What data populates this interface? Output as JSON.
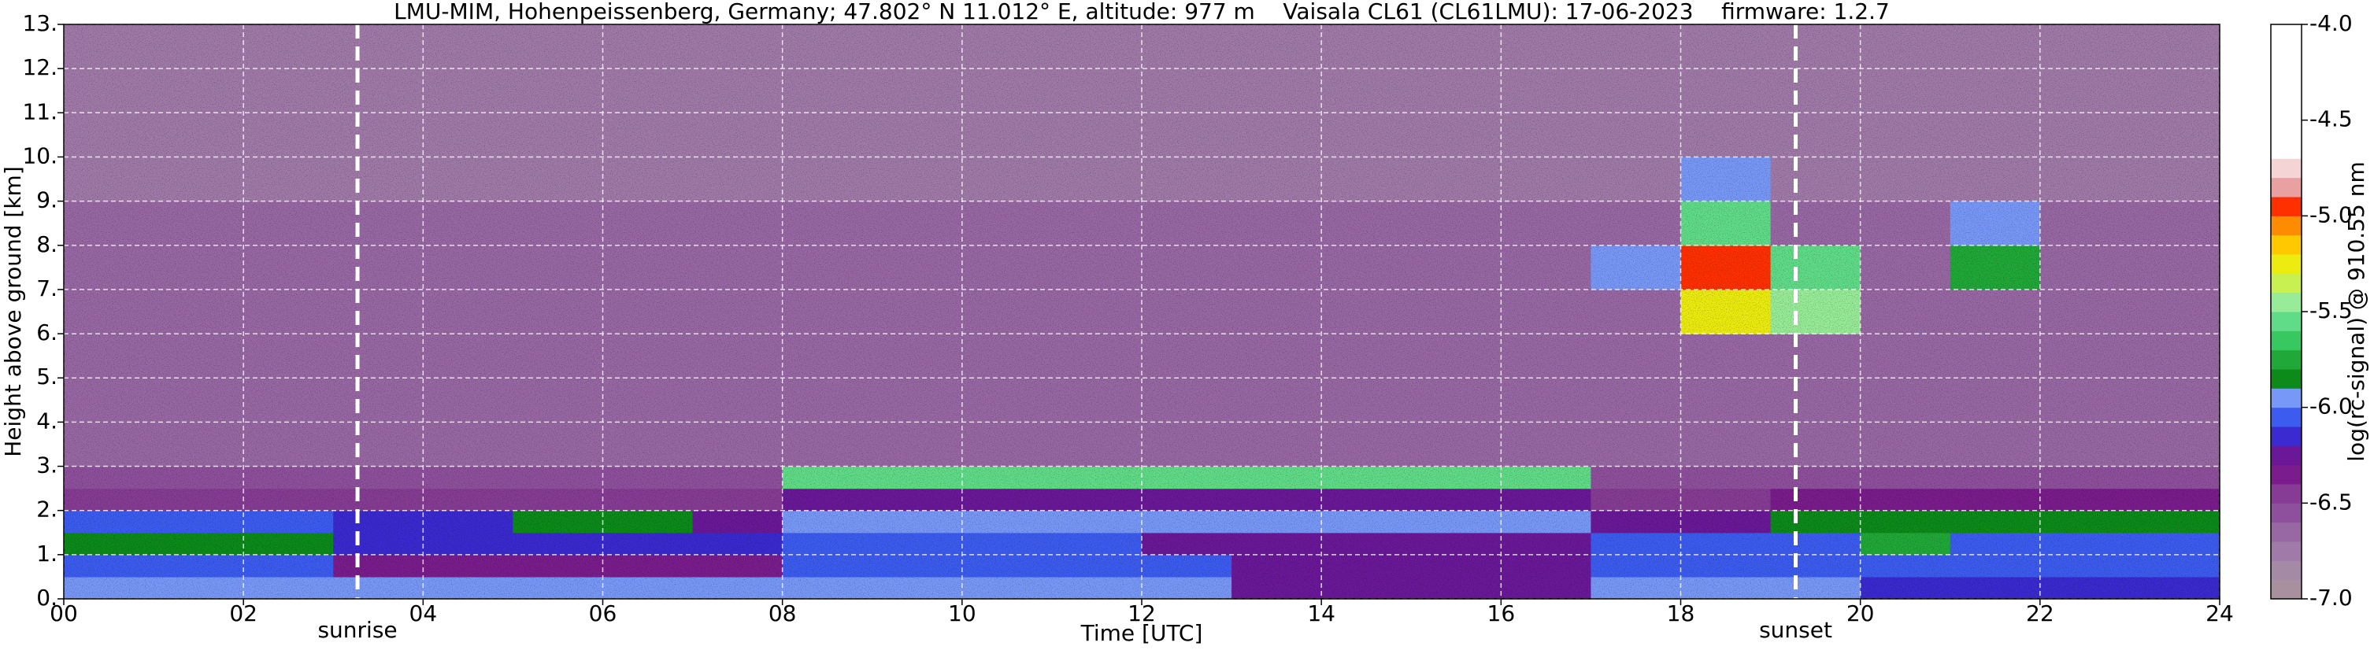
{
  "chart_data": {
    "type": "heatmap",
    "title": "LMU-MIM, Hohenpeissenberg, Germany; 47.802° N 11.012° E, altitude: 977 m    Vaisala CL61 (CL61LMU): 17-06-2023    firmware: 1.2.7",
    "x_label": "Time [UTC]",
    "y_label": "Height above ground [km]",
    "colorbar_label": "log(rc-signal) @ 910.55 nm",
    "xlim": [
      0,
      24
    ],
    "ylim": [
      0,
      13
    ],
    "xticks": [
      {
        "value": 0,
        "label": "00"
      },
      {
        "value": 2,
        "label": "02"
      },
      {
        "value": 4,
        "label": "04"
      },
      {
        "value": 6,
        "label": "06"
      },
      {
        "value": 8,
        "label": "08"
      },
      {
        "value": 10,
        "label": "10"
      },
      {
        "value": 12,
        "label": "12"
      },
      {
        "value": 14,
        "label": "14"
      },
      {
        "value": 16,
        "label": "16"
      },
      {
        "value": 18,
        "label": "18"
      },
      {
        "value": 20,
        "label": "20"
      },
      {
        "value": 22,
        "label": "22"
      },
      {
        "value": 24,
        "label": "24"
      }
    ],
    "yticks": [
      {
        "value": 0,
        "label": "0."
      },
      {
        "value": 1,
        "label": "1."
      },
      {
        "value": 2,
        "label": "2."
      },
      {
        "value": 3,
        "label": "3."
      },
      {
        "value": 4,
        "label": "4."
      },
      {
        "value": 5,
        "label": "5."
      },
      {
        "value": 6,
        "label": "6."
      },
      {
        "value": 7,
        "label": "7."
      },
      {
        "value": 8,
        "label": "8."
      },
      {
        "value": 9,
        "label": "9."
      },
      {
        "value": 10,
        "label": "10."
      },
      {
        "value": 11,
        "label": "11."
      },
      {
        "value": 12,
        "label": "12."
      },
      {
        "value": 13,
        "label": "13."
      }
    ],
    "zlim": [
      -7,
      -4
    ],
    "zticks": [
      {
        "value": -7,
        "label": "-7.0"
      },
      {
        "value": -6.5,
        "label": "-6.5"
      },
      {
        "value": -6,
        "label": "-6.0"
      },
      {
        "value": -5.5,
        "label": "-5.5"
      },
      {
        "value": -5,
        "label": "-5.0"
      },
      {
        "value": -4.5,
        "label": "-4.5"
      },
      {
        "value": -4,
        "label": "-4.0"
      }
    ],
    "colormap": [
      "#a8909f",
      "#a58aa6",
      "#a07aa8",
      "#9868a4",
      "#8e509c",
      "#863c94",
      "#7a1c8c",
      "#6a1898",
      "#3a2ad0",
      "#3c5cf0",
      "#7898f8",
      "#0c8a1a",
      "#20a838",
      "#38c860",
      "#60dc88",
      "#98ec98",
      "#c8f050",
      "#ecec10",
      "#ffc800",
      "#ff8c00",
      "#ff3000",
      "#e8a0a0",
      "#f4d4d4",
      "#ffffff",
      "#ffffff",
      "#ffffff",
      "#ffffff",
      "#ffffff",
      "#ffffff",
      "#ffffff"
    ],
    "grid": true,
    "annotations": [
      {
        "text": "sunrise",
        "x": 3.27
      },
      {
        "text": "sunset",
        "x": 19.28
      }
    ],
    "x_bins": [
      0,
      1,
      2,
      3,
      4,
      5,
      6,
      7,
      8,
      9,
      10,
      11,
      12,
      13,
      14,
      15,
      16,
      17,
      18,
      19,
      20,
      21,
      22,
      23,
      24
    ],
    "y_bins": [
      0,
      0.5,
      1,
      1.5,
      2,
      2.5,
      3,
      4,
      5,
      6,
      7,
      8,
      9,
      10,
      11,
      12,
      13
    ],
    "z": [
      [
        -6.0,
        -6.0,
        -6.0,
        -6.0,
        -6.0,
        -6.0,
        -6.0,
        -6.0,
        -6.0,
        -6.0,
        -6.0,
        -6.0,
        -6.0,
        -6.2,
        -6.2,
        -6.2,
        -6.2,
        -6.0,
        -6.0,
        -6.0,
        -6.15,
        -6.15,
        -6.15,
        -6.15
      ],
      [
        -6.05,
        -6.05,
        -6.05,
        -6.35,
        -6.35,
        -6.35,
        -6.35,
        -6.35,
        -6.05,
        -6.05,
        -6.05,
        -6.05,
        -6.05,
        -6.25,
        -6.25,
        -6.25,
        -6.25,
        -6.05,
        -6.05,
        -6.05,
        -6.05,
        -6.05,
        -6.05,
        -6.05
      ],
      [
        -5.85,
        -5.85,
        -5.85,
        -6.15,
        -6.15,
        -6.15,
        -6.15,
        -6.15,
        -6.05,
        -6.05,
        -6.05,
        -6.05,
        -6.2,
        -6.2,
        -6.2,
        -6.2,
        -6.2,
        -6.1,
        -6.1,
        -6.1,
        -5.8,
        -6.1,
        -6.1,
        -6.1
      ],
      [
        -6.1,
        -6.1,
        -6.1,
        -6.15,
        -6.15,
        -5.85,
        -5.85,
        -6.2,
        -5.9,
        -6.0,
        -5.9,
        -6.0,
        -5.9,
        -6.0,
        -6.0,
        -5.9,
        -6.0,
        -6.3,
        -6.3,
        -5.85,
        -5.85,
        -5.85,
        -5.85,
        -5.85
      ],
      [
        -6.4,
        -6.4,
        -6.4,
        -6.4,
        -6.4,
        -6.4,
        -6.4,
        -6.4,
        -6.2,
        -6.2,
        -6.2,
        -6.2,
        -6.2,
        -6.2,
        -6.2,
        -6.2,
        -6.2,
        -6.45,
        -6.45,
        -6.35,
        -6.35,
        -6.35,
        -6.35,
        -6.35
      ],
      [
        -6.55,
        -6.55,
        -6.55,
        -6.55,
        -6.55,
        -6.55,
        -6.55,
        -6.55,
        -5.6,
        -5.6,
        -5.6,
        -5.6,
        -5.6,
        -5.6,
        -5.6,
        -5.6,
        -5.6,
        -6.55,
        -6.55,
        -6.55,
        -6.55,
        -6.55,
        -6.55,
        -6.55
      ],
      [
        -6.65,
        -6.65,
        -6.65,
        -6.65,
        -6.65,
        -6.65,
        -6.65,
        -6.65,
        -6.65,
        -6.65,
        -6.65,
        -6.65,
        -6.65,
        -6.65,
        -6.65,
        -6.65,
        -6.65,
        -6.65,
        -6.65,
        -6.65,
        -6.65,
        -6.65,
        -6.65,
        -6.65
      ],
      [
        -6.65,
        -6.65,
        -6.65,
        -6.65,
        -6.65,
        -6.65,
        -6.65,
        -6.65,
        -6.65,
        -6.65,
        -6.65,
        -6.65,
        -6.65,
        -6.65,
        -6.65,
        -6.65,
        -6.65,
        -6.65,
        -6.65,
        -6.65,
        -6.65,
        -6.65,
        -6.65,
        -6.65
      ],
      [
        -6.65,
        -6.65,
        -6.65,
        -6.65,
        -6.65,
        -6.65,
        -6.65,
        -6.65,
        -6.65,
        -6.65,
        -6.65,
        -6.65,
        -6.65,
        -6.65,
        -6.65,
        -6.65,
        -6.65,
        -6.65,
        -6.65,
        -6.65,
        -6.65,
        -6.65,
        -6.65,
        -6.65
      ],
      [
        -6.65,
        -6.65,
        -6.65,
        -6.65,
        -6.65,
        -6.65,
        -6.65,
        -6.65,
        -6.65,
        -6.65,
        -6.65,
        -6.65,
        -6.65,
        -6.65,
        -6.65,
        -6.65,
        -6.65,
        -6.65,
        -5.3,
        -5.4,
        -6.65,
        -6.65,
        -6.65,
        -6.65
      ],
      [
        -6.65,
        -6.65,
        -6.65,
        -6.65,
        -6.65,
        -6.65,
        -6.65,
        -6.65,
        -6.65,
        -6.65,
        -6.65,
        -6.65,
        -6.65,
        -6.65,
        -6.65,
        -6.65,
        -6.65,
        -6.0,
        -5.0,
        -5.6,
        -6.65,
        -5.8,
        -6.65,
        -6.65
      ],
      [
        -6.65,
        -6.65,
        -6.65,
        -6.65,
        -6.65,
        -6.65,
        -6.65,
        -6.65,
        -6.65,
        -6.65,
        -6.65,
        -6.65,
        -6.65,
        -6.65,
        -6.65,
        -6.65,
        -6.65,
        -6.65,
        -5.6,
        -6.65,
        -6.65,
        -6.0,
        -6.65,
        -6.65
      ],
      [
        -6.7,
        -6.7,
        -6.7,
        -6.7,
        -6.7,
        -6.7,
        -6.7,
        -6.7,
        -6.7,
        -6.7,
        -6.7,
        -6.7,
        -6.7,
        -6.7,
        -6.7,
        -6.7,
        -6.7,
        -6.7,
        -6.0,
        -6.7,
        -6.7,
        -6.7,
        -6.7,
        -6.7
      ],
      [
        -6.7,
        -6.7,
        -6.7,
        -6.7,
        -6.7,
        -6.7,
        -6.7,
        -6.7,
        -6.7,
        -6.7,
        -6.7,
        -6.7,
        -6.7,
        -6.7,
        -6.7,
        -6.7,
        -6.7,
        -6.7,
        -6.7,
        -6.7,
        -6.7,
        -6.7,
        -6.7,
        -6.7
      ],
      [
        -6.7,
        -6.7,
        -6.7,
        -6.7,
        -6.7,
        -6.7,
        -6.7,
        -6.7,
        -6.7,
        -6.7,
        -6.7,
        -6.7,
        -6.7,
        -6.7,
        -6.7,
        -6.7,
        -6.7,
        -6.7,
        -6.7,
        -6.7,
        -6.7,
        -6.7,
        -6.7,
        -6.7
      ],
      [
        -6.7,
        -6.7,
        -6.7,
        -6.7,
        -6.7,
        -6.7,
        -6.7,
        -6.7,
        -6.7,
        -6.7,
        -6.7,
        -6.7,
        -6.7,
        -6.7,
        -6.7,
        -6.7,
        -6.7,
        -6.7,
        -6.7,
        -6.7,
        -6.7,
        -6.7,
        -6.7,
        -6.7
      ]
    ]
  }
}
